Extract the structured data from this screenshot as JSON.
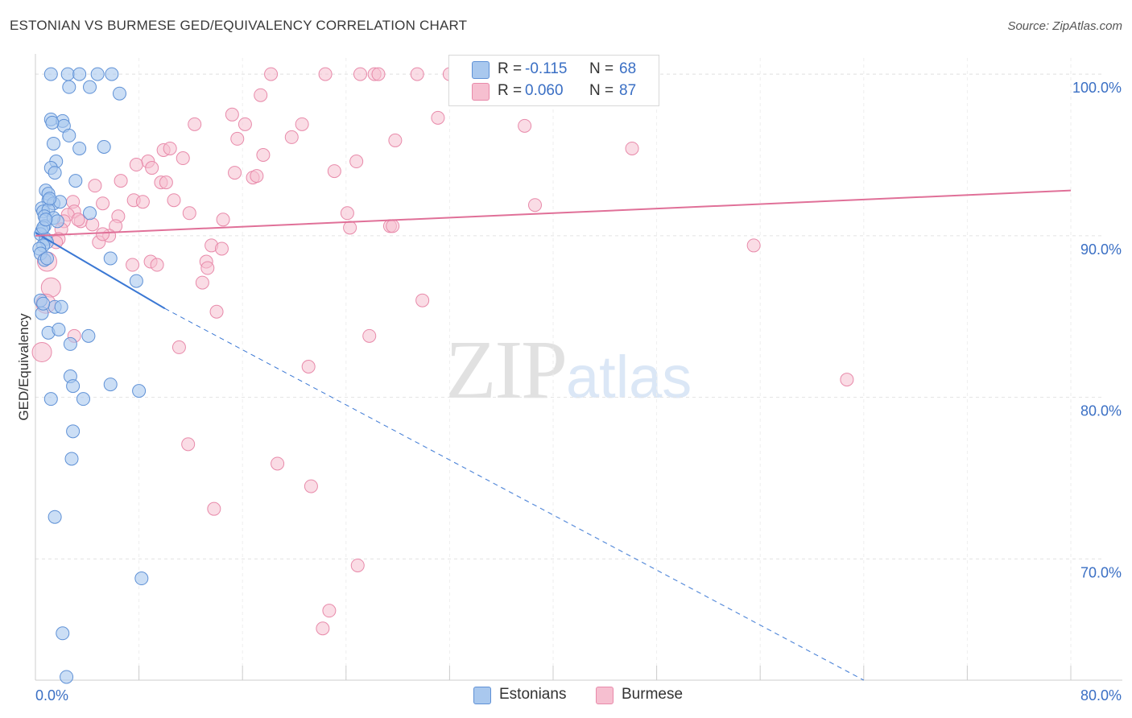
{
  "title": "ESTONIAN VS BURMESE GED/EQUIVALENCY CORRELATION CHART",
  "source": "Source: ZipAtlas.com",
  "watermark": {
    "zip": "ZIP",
    "atlas": "atlas"
  },
  "legend": {
    "estonians": {
      "r_label": "R =",
      "r_value": "-0.115",
      "n_label": "N =",
      "n_value": "68"
    },
    "burmese": {
      "r_label": "R =",
      "r_value": "0.060",
      "n_label": "N =",
      "n_value": "87"
    }
  },
  "bottom_legend": {
    "estonians": "Estonians",
    "burmese": "Burmese"
  },
  "colors": {
    "estonian_fill": "#a9c8ee",
    "estonian_stroke": "#5f91d6",
    "estonian_line": "#3b78d4",
    "burmese_fill": "#f6bfd0",
    "burmese_stroke": "#e88aaa",
    "burmese_line": "#e07098",
    "grid": "#e3e3e3",
    "tick_label": "#3a6fc4"
  },
  "chart_data": {
    "type": "scatter",
    "title": "ESTONIAN VS BURMESE GED/EQUIVALENCY CORRELATION CHART",
    "xlabel": "",
    "ylabel": "GED/Equivalency",
    "xlim": [
      0,
      80
    ],
    "ylim": [
      62.5,
      101.5
    ],
    "x_tick_labels": [
      "0.0%",
      "80.0%"
    ],
    "y_ticks": [
      70,
      80,
      90,
      100
    ],
    "y_tick_labels": [
      "70.0%",
      "80.0%",
      "90.0%",
      "100.0%"
    ],
    "series": [
      {
        "name": "Estonians",
        "r": -0.115,
        "n": 68,
        "trend": {
          "x0": 0,
          "y0": 90.2,
          "x1": 10.0,
          "y1": 85.5,
          "x_end": 64.0,
          "y_end": 62.5
        },
        "points": [
          [
            1.2,
            100
          ],
          [
            2.5,
            100
          ],
          [
            3.4,
            100
          ],
          [
            4.8,
            100
          ],
          [
            5.9,
            100
          ],
          [
            2.6,
            99.2
          ],
          [
            4.2,
            99.2
          ],
          [
            6.5,
            98.8
          ],
          [
            1.2,
            97.2
          ],
          [
            2.1,
            97.1
          ],
          [
            2.2,
            96.8
          ],
          [
            1.3,
            97.0
          ],
          [
            2.6,
            96.2
          ],
          [
            1.4,
            95.7
          ],
          [
            3.4,
            95.4
          ],
          [
            5.3,
            95.5
          ],
          [
            1.6,
            94.6
          ],
          [
            1.2,
            94.2
          ],
          [
            1.5,
            93.9
          ],
          [
            3.1,
            93.4
          ],
          [
            0.8,
            92.8
          ],
          [
            1.0,
            92.6
          ],
          [
            1.0,
            92.2
          ],
          [
            1.4,
            92.0
          ],
          [
            1.9,
            92.1
          ],
          [
            0.5,
            91.7
          ],
          [
            0.6,
            91.5
          ],
          [
            1.0,
            91.6
          ],
          [
            0.7,
            91.2
          ],
          [
            1.4,
            91.1
          ],
          [
            1.7,
            90.9
          ],
          [
            0.7,
            90.6
          ],
          [
            0.5,
            90.3
          ],
          [
            0.4,
            90.1
          ],
          [
            0.8,
            89.8
          ],
          [
            0.9,
            89.6
          ],
          [
            4.2,
            91.4
          ],
          [
            0.6,
            89.4
          ],
          [
            0.3,
            89.2
          ],
          [
            0.4,
            88.9
          ],
          [
            0.7,
            88.5
          ],
          [
            5.8,
            88.6
          ],
          [
            7.8,
            87.2
          ],
          [
            0.4,
            86.0
          ],
          [
            1.5,
            85.6
          ],
          [
            2.0,
            85.6
          ],
          [
            0.5,
            85.2
          ],
          [
            1.0,
            84.0
          ],
          [
            1.8,
            84.2
          ],
          [
            4.1,
            83.8
          ],
          [
            2.7,
            83.3
          ],
          [
            2.7,
            81.3
          ],
          [
            5.8,
            80.8
          ],
          [
            2.9,
            80.7
          ],
          [
            8.0,
            80.4
          ],
          [
            1.2,
            79.9
          ],
          [
            3.7,
            79.9
          ],
          [
            2.9,
            77.9
          ],
          [
            2.8,
            76.2
          ],
          [
            1.5,
            72.6
          ],
          [
            8.2,
            68.8
          ],
          [
            2.1,
            65.4
          ],
          [
            2.4,
            62.7
          ],
          [
            0.6,
            90.5
          ],
          [
            0.8,
            91.0
          ],
          [
            1.1,
            92.3
          ],
          [
            0.9,
            88.6
          ],
          [
            0.6,
            85.8
          ]
        ]
      },
      {
        "name": "Burmese",
        "r": 0.06,
        "n": 87,
        "trend": {
          "x0": 0,
          "y0": 90.0,
          "x1": 80,
          "y1": 92.8
        },
        "points": [
          [
            18.2,
            100
          ],
          [
            22.4,
            100
          ],
          [
            25.1,
            100
          ],
          [
            26.2,
            100
          ],
          [
            26.5,
            100
          ],
          [
            29.5,
            100
          ],
          [
            32.0,
            100
          ],
          [
            31.1,
            97.3
          ],
          [
            17.4,
            98.7
          ],
          [
            15.2,
            97.5
          ],
          [
            12.3,
            96.9
          ],
          [
            16.2,
            96.9
          ],
          [
            20.6,
            96.9
          ],
          [
            19.8,
            96.1
          ],
          [
            15.6,
            96.0
          ],
          [
            27.8,
            95.9
          ],
          [
            37.8,
            96.8
          ],
          [
            46.1,
            95.4
          ],
          [
            9.9,
            95.3
          ],
          [
            10.4,
            95.4
          ],
          [
            11.4,
            94.8
          ],
          [
            17.6,
            95.0
          ],
          [
            8.7,
            94.6
          ],
          [
            7.8,
            94.4
          ],
          [
            9.0,
            94.2
          ],
          [
            24.8,
            94.6
          ],
          [
            23.1,
            94.0
          ],
          [
            15.4,
            93.9
          ],
          [
            16.8,
            93.6
          ],
          [
            17.1,
            93.7
          ],
          [
            6.6,
            93.4
          ],
          [
            9.7,
            93.3
          ],
          [
            10.1,
            93.3
          ],
          [
            4.6,
            93.1
          ],
          [
            7.6,
            92.2
          ],
          [
            8.3,
            92.1
          ],
          [
            10.7,
            92.2
          ],
          [
            5.2,
            92.0
          ],
          [
            2.9,
            92.1
          ],
          [
            38.6,
            91.9
          ],
          [
            3.0,
            91.5
          ],
          [
            2.5,
            91.3
          ],
          [
            11.9,
            91.4
          ],
          [
            24.1,
            91.4
          ],
          [
            6.4,
            91.2
          ],
          [
            14.5,
            91.0
          ],
          [
            2.2,
            90.9
          ],
          [
            3.5,
            90.9
          ],
          [
            4.4,
            90.7
          ],
          [
            6.2,
            90.6
          ],
          [
            27.4,
            90.6
          ],
          [
            27.6,
            90.6
          ],
          [
            24.3,
            90.5
          ],
          [
            2.0,
            90.4
          ],
          [
            5.7,
            90.0
          ],
          [
            1.8,
            89.8
          ],
          [
            1.6,
            89.6
          ],
          [
            4.9,
            89.6
          ],
          [
            13.6,
            89.4
          ],
          [
            55.5,
            89.4
          ],
          [
            14.4,
            89.2
          ],
          [
            0.9,
            88.4
          ],
          [
            8.9,
            88.4
          ],
          [
            9.4,
            88.2
          ],
          [
            7.5,
            88.2
          ],
          [
            13.2,
            88.4
          ],
          [
            13.3,
            88.0
          ],
          [
            12.9,
            87.1
          ],
          [
            1.2,
            86.8
          ],
          [
            0.8,
            85.8
          ],
          [
            29.9,
            86.0
          ],
          [
            14.0,
            85.3
          ],
          [
            3.0,
            83.8
          ],
          [
            25.8,
            83.8
          ],
          [
            11.1,
            83.1
          ],
          [
            0.5,
            82.8
          ],
          [
            21.1,
            81.9
          ],
          [
            62.7,
            81.1
          ],
          [
            11.8,
            77.1
          ],
          [
            18.7,
            75.9
          ],
          [
            21.3,
            74.5
          ],
          [
            13.8,
            73.1
          ],
          [
            24.9,
            69.6
          ],
          [
            22.7,
            66.8
          ],
          [
            22.2,
            65.7
          ],
          [
            5.2,
            90.1
          ],
          [
            3.3,
            91.0
          ]
        ]
      }
    ]
  }
}
